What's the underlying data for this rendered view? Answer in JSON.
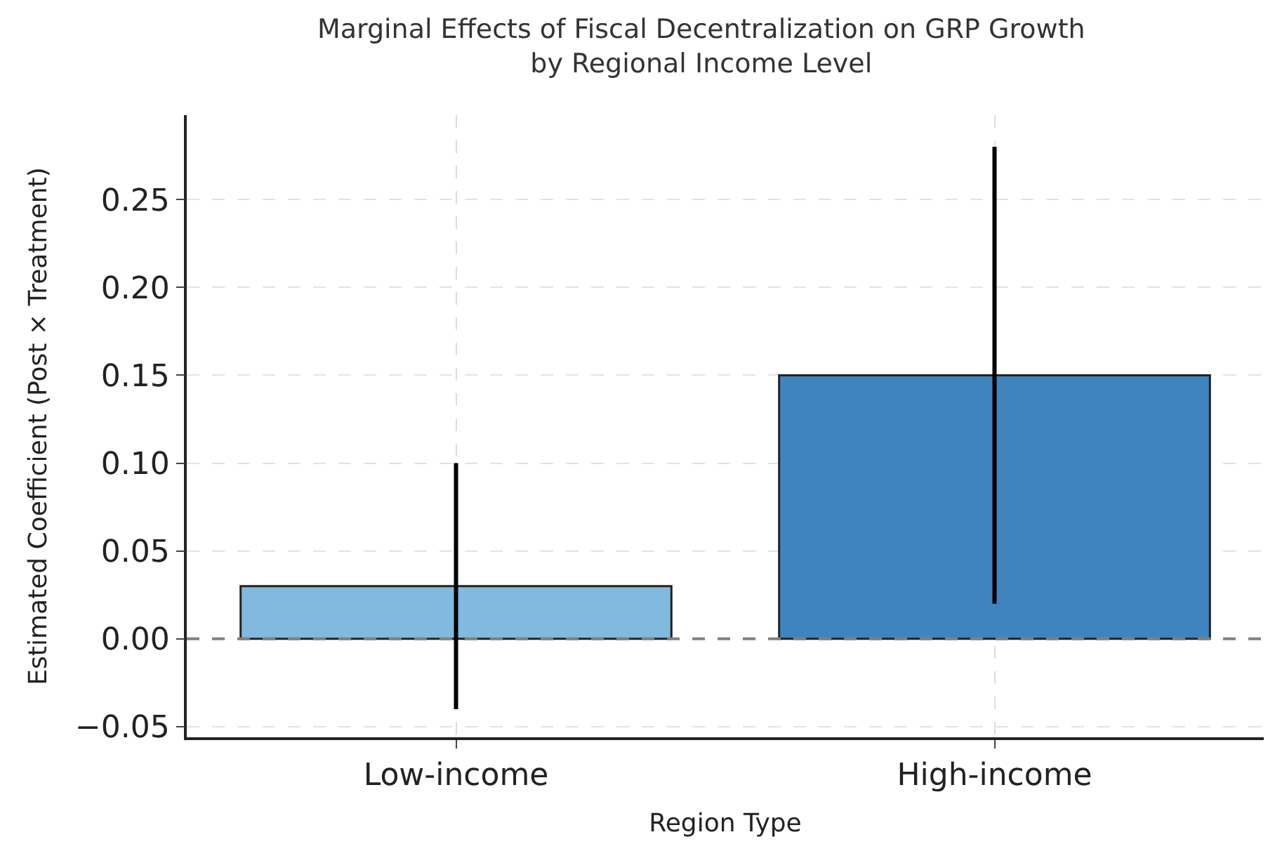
{
  "chart_data": {
    "type": "bar",
    "title": "Marginal Effects of Fiscal Decentralization on GRP Growth\nby Regional Income Level",
    "xlabel": "Region Type",
    "ylabel": "Estimated Coefficient (Post × Treatment)",
    "categories": [
      "Low-income",
      "High-income"
    ],
    "values": [
      0.03,
      0.15
    ],
    "colors": [
      "#82b9de",
      "#3f84bf"
    ],
    "errors": [
      [
        -0.04,
        0.1
      ],
      [
        0.02,
        0.28
      ]
    ],
    "ylim": [
      -0.056,
      0.298
    ],
    "yticks": [
      {
        "value": -0.05,
        "label": "−0.05"
      },
      {
        "value": 0,
        "label": "0.00"
      },
      {
        "value": 0.05,
        "label": "0.05"
      },
      {
        "value": 0.1,
        "label": "0.10"
      },
      {
        "value": 0.15,
        "label": "0.15"
      },
      {
        "value": 0.2,
        "label": "0.20"
      },
      {
        "value": 0.25,
        "label": "0.25"
      }
    ],
    "ref_lines": [
      {
        "axis": "y",
        "value": 0,
        "color": "#808080",
        "line_style": "dashed"
      }
    ],
    "grid": true
  }
}
